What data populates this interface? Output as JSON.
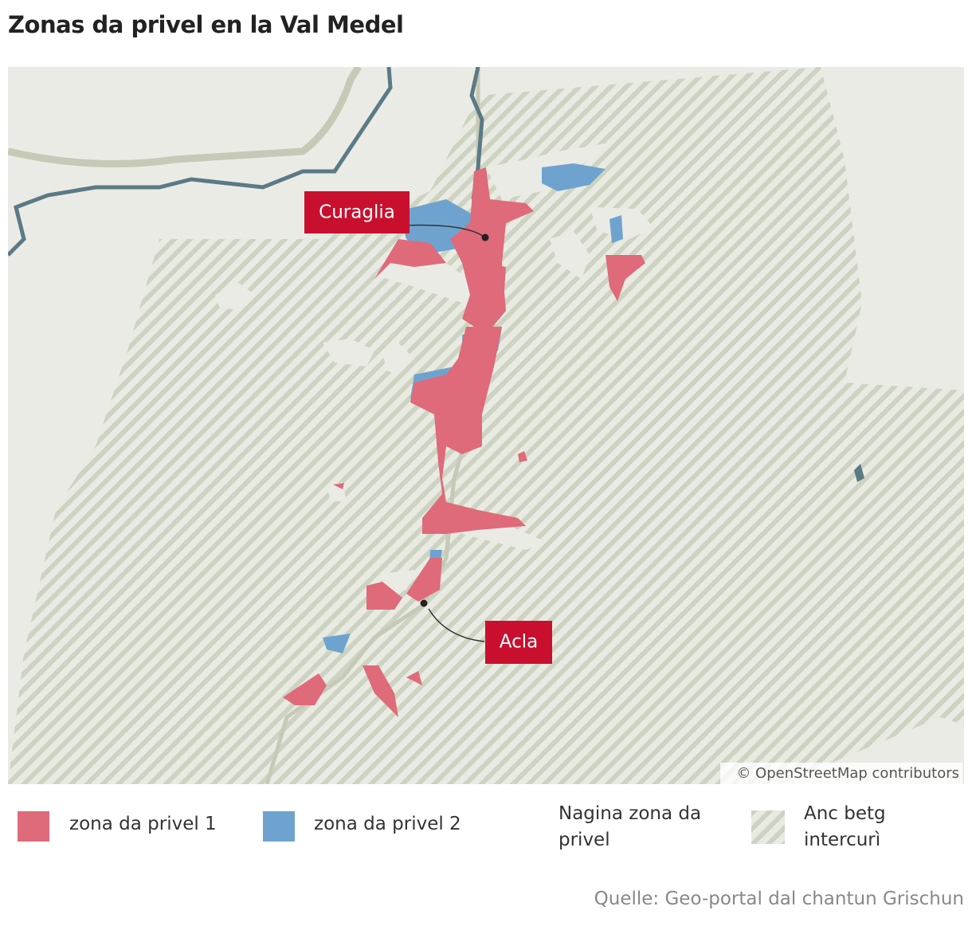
{
  "header": {
    "title": "Zonas da privel en la Val Medel"
  },
  "map": {
    "labels": [
      "Curaglia",
      "Acla"
    ],
    "attribution": "© OpenStreetMap contributors"
  },
  "legend": {
    "items": [
      "zona da privel 1",
      "zona da privel 2",
      "Nagina zona da privel",
      "Anc betg intercurì"
    ]
  },
  "footer": {
    "source": "Quelle: Geo-portal dal chantun Grischun"
  }
}
